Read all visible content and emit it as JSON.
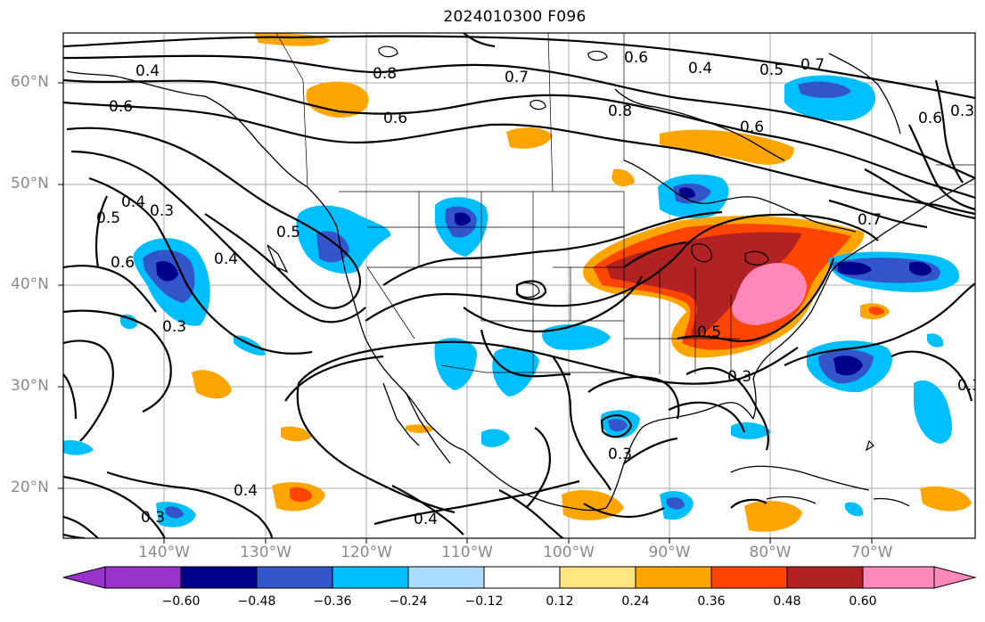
{
  "title": "2024010300 F096",
  "lat_labels": [
    "60°N",
    "50°N",
    "40°N",
    "30°N",
    "20°N"
  ],
  "lon_labels": [
    "140°W",
    "130°W",
    "120°W",
    "110°W",
    "100°W",
    "90°W",
    "80°W",
    "70°W"
  ],
  "contour_labels": [
    "0.8",
    "0.7",
    "0.8",
    "0.6",
    "0.4",
    "0.5",
    "0.7",
    "0.6",
    "0.6",
    "0.6",
    "0.4",
    "0.5",
    "0.4",
    "0.3",
    "0.5",
    "0.4",
    "0.3",
    "0.3",
    "0.7",
    "0.5",
    "0.3",
    "0.3",
    "0.3",
    "0.4",
    "0.4",
    "0.3",
    "0.6",
    "0.6"
  ],
  "colorbar": {
    "ticks": [
      "−0.60",
      "−0.48",
      "−0.36",
      "−0.24",
      "−0.12",
      "0.12",
      "0.24",
      "0.36",
      "0.48",
      "0.60"
    ],
    "colors": [
      "#9933cc",
      "#00008b",
      "#3355cc",
      "#00bfff",
      "#aadcff",
      "#ffffff",
      "#ffe680",
      "#ffa500",
      "#ff4500",
      "#b22222",
      "#ff88bb"
    ]
  }
}
